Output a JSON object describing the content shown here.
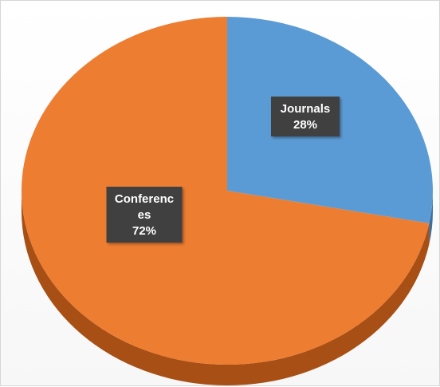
{
  "chart_data": {
    "type": "pie",
    "title": "",
    "style": "3d",
    "slices": [
      {
        "label_lines": [
          "Journals"
        ],
        "percent_label": "28%",
        "value": 28,
        "color": "#5b9bd5",
        "side_color": "#3a6f9e"
      },
      {
        "label_lines": [
          "Conferenc",
          "es"
        ],
        "percent_label": "72%",
        "value": 72,
        "color": "#ed7d31",
        "side_color": "#a84f15"
      }
    ],
    "legend": "none",
    "data_labels": "inside"
  }
}
